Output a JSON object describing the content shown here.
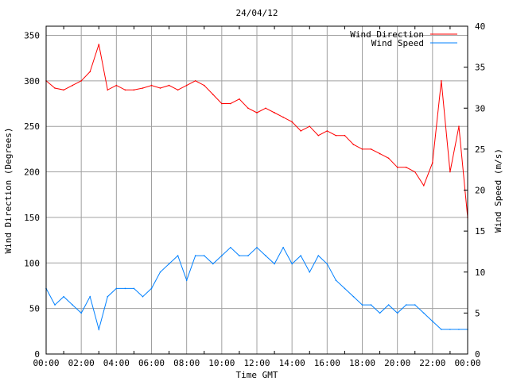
{
  "chart_data": {
    "type": "line",
    "title": "24/04/12",
    "xlabel": "Time GMT",
    "ylabel": "Wind Direction (Degrees)",
    "y2label": "Wind Speed (m/s)",
    "x_ticks": [
      "00:00",
      "02:00",
      "04:00",
      "06:00",
      "08:00",
      "10:00",
      "12:00",
      "14:00",
      "16:00",
      "18:00",
      "20:00",
      "22:00",
      "00:00"
    ],
    "xlim_hours": [
      0,
      24
    ],
    "ylim": [
      0,
      360
    ],
    "y_ticks": [
      0,
      50,
      100,
      150,
      200,
      250,
      300,
      350
    ],
    "y2lim": [
      0,
      40
    ],
    "y2_ticks": [
      0,
      5,
      10,
      15,
      20,
      25,
      30,
      35,
      40
    ],
    "grid": true,
    "legend_position": "top-right",
    "x_hours": [
      0,
      0.5,
      1,
      1.5,
      2,
      2.5,
      3,
      3.5,
      4,
      4.5,
      5,
      5.5,
      6,
      6.5,
      7,
      7.5,
      8,
      8.5,
      9,
      9.5,
      10,
      10.5,
      11,
      11.5,
      12,
      12.5,
      13,
      13.5,
      14,
      14.5,
      15,
      15.5,
      16,
      16.5,
      17,
      17.5,
      18,
      18.5,
      19,
      19.5,
      20,
      20.5,
      21,
      21.5,
      22,
      22.5,
      23,
      23.5,
      24
    ],
    "series": [
      {
        "name": "Wind Direction",
        "axis": "left",
        "color": "#ff0000",
        "values": [
          300,
          292,
          290,
          295,
          300,
          310,
          340,
          290,
          295,
          290,
          290,
          292,
          295,
          292,
          295,
          290,
          295,
          300,
          295,
          285,
          275,
          275,
          280,
          270,
          265,
          270,
          265,
          260,
          255,
          245,
          250,
          240,
          245,
          240,
          240,
          230,
          225,
          225,
          220,
          215,
          205,
          205,
          200,
          185,
          210,
          300,
          200,
          250,
          150
        ]
      },
      {
        "name": "Wind Speed",
        "axis": "right",
        "color": "#0080ff",
        "values": [
          8,
          6,
          7,
          6,
          5,
          7,
          3,
          7,
          8,
          8,
          8,
          7,
          8,
          10,
          11,
          12,
          9,
          12,
          12,
          11,
          12,
          13,
          12,
          12,
          13,
          12,
          11,
          13,
          11,
          12,
          10,
          12,
          11,
          9,
          8,
          7,
          6,
          6,
          5,
          6,
          5,
          6,
          6,
          5,
          4,
          3,
          3,
          3,
          3
        ]
      }
    ]
  }
}
